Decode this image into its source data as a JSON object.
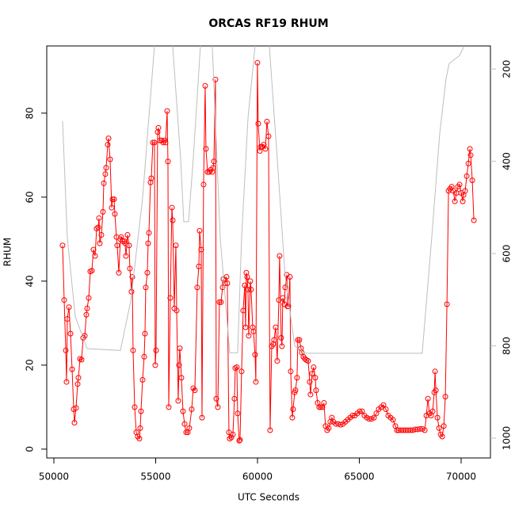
{
  "chart_data": {
    "type": "line",
    "title": "ORCAS RF19 RHUM",
    "x_label": "UTC Seconds",
    "y_label": "RHUM",
    "xlim": [
      49650,
      71440
    ],
    "ylim": [
      -2.1,
      96.0
    ],
    "y2lim": [
      1043,
      150
    ],
    "xticks": [
      50000,
      55000,
      60000,
      65000,
      70000
    ],
    "yticks": [
      0,
      20,
      40,
      60,
      80
    ],
    "y2ticks": [
      200,
      400,
      600,
      800,
      1000
    ],
    "y2_tick_color": "#bebebe",
    "series": [
      {
        "color": "#ff0000",
        "markers": true,
        "x": [
          50428,
          50506,
          50584,
          50622,
          50661,
          50739,
          50817,
          50895,
          50973,
          51011,
          51089,
          51167,
          51206,
          51284,
          51362,
          51439,
          51517,
          51595,
          51634,
          51712,
          51789,
          51867,
          51945,
          52023,
          52100,
          52178,
          52217,
          52256,
          52334,
          52412,
          52451,
          52528,
          52567,
          52645,
          52684,
          52762,
          52840,
          52879,
          52956,
          52995,
          53073,
          53112,
          53190,
          53267,
          53306,
          53384,
          53462,
          53501,
          53540,
          53618,
          53696,
          53734,
          53812,
          53851,
          53890,
          53968,
          54046,
          54123,
          54201,
          54240,
          54279,
          54357,
          54435,
          54474,
          54512,
          54590,
          54629,
          54668,
          54746,
          54785,
          54863,
          54940,
          54979,
          55018,
          55096,
          55135,
          55213,
          55291,
          55368,
          55446,
          55485,
          55563,
          55602,
          55641,
          55718,
          55796,
          55835,
          55913,
          55991,
          56030,
          56107,
          56146,
          56185,
          56263,
          56341,
          56419,
          56496,
          56574,
          56652,
          56769,
          56846,
          56924,
          57041,
          57119,
          57158,
          57236,
          57275,
          57352,
          57430,
          57469,
          57547,
          57625,
          57702,
          57780,
          57819,
          57858,
          57936,
          57975,
          58052,
          58130,
          58208,
          58286,
          58325,
          58403,
          58480,
          58519,
          58597,
          58636,
          58714,
          58792,
          58869,
          58908,
          58986,
          59025,
          59103,
          59142,
          59219,
          59297,
          59375,
          59414,
          59453,
          59492,
          59531,
          59570,
          59647,
          59686,
          59764,
          59803,
          59881,
          59919,
          59997,
          60036,
          60114,
          60153,
          60231,
          60308,
          60386,
          60464,
          60542,
          60620,
          60698,
          60775,
          60814,
          60892,
          60970,
          61048,
          61086,
          61164,
          61203,
          61242,
          61320,
          61359,
          61437,
          61476,
          61514,
          61592,
          61631,
          61709,
          61748,
          61826,
          61865,
          61942,
          61981,
          62059,
          62137,
          62176,
          62253,
          62331,
          62409,
          62487,
          62565,
          62603,
          62681,
          62759,
          62837,
          62876,
          62953,
          63031,
          63109,
          63187,
          63264,
          63342,
          63420,
          63498,
          63575,
          63653,
          63731,
          63848,
          63965,
          64082,
          64199,
          64316,
          64433,
          64550,
          64667,
          64784,
          64901,
          65018,
          65135,
          65252,
          65369,
          65486,
          65602,
          65719,
          65836,
          65953,
          66070,
          66187,
          66304,
          66421,
          66538,
          66655,
          66772,
          66850,
          66927,
          67044,
          67161,
          67279,
          67395,
          67512,
          67629,
          67746,
          67863,
          67980,
          68097,
          68214,
          68292,
          68370,
          68448,
          68526,
          68603,
          68681,
          68720,
          68759,
          68837,
          68915,
          68993,
          69071,
          69148,
          69226,
          69304,
          69381,
          69459,
          69537,
          69615,
          69692,
          69770,
          69848,
          69926,
          70003,
          70081,
          70120,
          70198,
          70276,
          70354,
          70431,
          70470,
          70548,
          70626
        ],
        "values": [
          48.5,
          35.5,
          23.5,
          16,
          31,
          33.8,
          27.5,
          19,
          9.5,
          6.3,
          9.8,
          15.5,
          17,
          21.5,
          21.3,
          26.5,
          27,
          32,
          33.5,
          36,
          42.3,
          42.5,
          47.5,
          46,
          52.5,
          52.8,
          55,
          49,
          51,
          56.5,
          63.3,
          65.5,
          67,
          72.5,
          74,
          69,
          57.5,
          59.5,
          59.5,
          56,
          50.5,
          48.5,
          42,
          50,
          50.5,
          49.5,
          49.5,
          49,
          46,
          51,
          48.5,
          43,
          37.5,
          41,
          23.5,
          10,
          4,
          3,
          2.5,
          5,
          9,
          16.5,
          22,
          27.5,
          38.5,
          42,
          49,
          51.5,
          63.5,
          64.5,
          73,
          73,
          20,
          23.5,
          75.5,
          76.5,
          73.5,
          73.5,
          73,
          73.5,
          73,
          80.5,
          68.5,
          10,
          36,
          57.5,
          54.5,
          33.5,
          48.5,
          33,
          11.5,
          20,
          24,
          17,
          9,
          6,
          4,
          4,
          5,
          9.5,
          14.5,
          14,
          38.5,
          43.5,
          52,
          47.5,
          7.5,
          63,
          86.5,
          71.5,
          66,
          66,
          66.5,
          66,
          67,
          68.5,
          88,
          12,
          10,
          35,
          35,
          38.5,
          40.5,
          39.5,
          41,
          39.5,
          4,
          2.5,
          2.8,
          3.5,
          12,
          19.3,
          19.5,
          8.5,
          2,
          2.2,
          18.5,
          33,
          39,
          29,
          42,
          41,
          38,
          27,
          40,
          38,
          29,
          28,
          22.5,
          16,
          92,
          77.5,
          71,
          72,
          72,
          72.5,
          71.5,
          78,
          74.5,
          4.5,
          24.5,
          25,
          26,
          29,
          21,
          35.5,
          46,
          26.5,
          24.5,
          36,
          34.5,
          38.5,
          41.5,
          34,
          34,
          41,
          18.5,
          7.5,
          9.5,
          13.5,
          14,
          17,
          26,
          26,
          24,
          23,
          22,
          21.5,
          21.2,
          21,
          16,
          13,
          18,
          19.5,
          17,
          14,
          11,
          10,
          10,
          10,
          11,
          5.5,
          4.5,
          5,
          6.5,
          7.5,
          6.5,
          6,
          6,
          5.8,
          6,
          6.5,
          7,
          7.5,
          8,
          8,
          8.5,
          9,
          9,
          8,
          7.5,
          7.2,
          7.2,
          7.5,
          8.5,
          9.5,
          10,
          10.5,
          9.5,
          8,
          7.5,
          7,
          5.5,
          4.5,
          4.5,
          4.5,
          4.5,
          4.5,
          4.5,
          4.5,
          4.5,
          4.7,
          4.7,
          4.8,
          4.8,
          4.5,
          8,
          12,
          8.5,
          8,
          9,
          13.5,
          18.5,
          14,
          7.5,
          5,
          3.5,
          3,
          5.5,
          12.5,
          34.5,
          61.5,
          62,
          62.5,
          61.5,
          59,
          61,
          62.5,
          63,
          61,
          59,
          60.5,
          61.5,
          65,
          68,
          71.5,
          70,
          64,
          54.5
        ]
      },
      {
        "color": "#bebebe",
        "axis": "y2",
        "markers": false,
        "x": [
          50428,
          50661,
          51050,
          51634,
          53267,
          53773,
          54357,
          54940,
          55407,
          55835,
          56224,
          56380,
          56613,
          56846,
          57197,
          57469,
          57780,
          58169,
          58636,
          59025,
          59219,
          59531,
          59881,
          60192,
          60581,
          60970,
          61359,
          61826,
          62331,
          68089,
          68556,
          68945,
          69256,
          69411,
          69645,
          69917,
          70150
        ],
        "values": [
          313,
          566,
          737,
          806,
          810,
          703,
          480,
          150,
          120,
          150,
          394,
          531,
          531,
          394,
          150,
          120,
          150,
          566,
          815,
          815,
          566,
          308,
          150,
          120,
          150,
          394,
          651,
          800,
          816,
          816,
          566,
          342,
          222,
          188,
          180,
          171,
          150
        ]
      }
    ]
  }
}
